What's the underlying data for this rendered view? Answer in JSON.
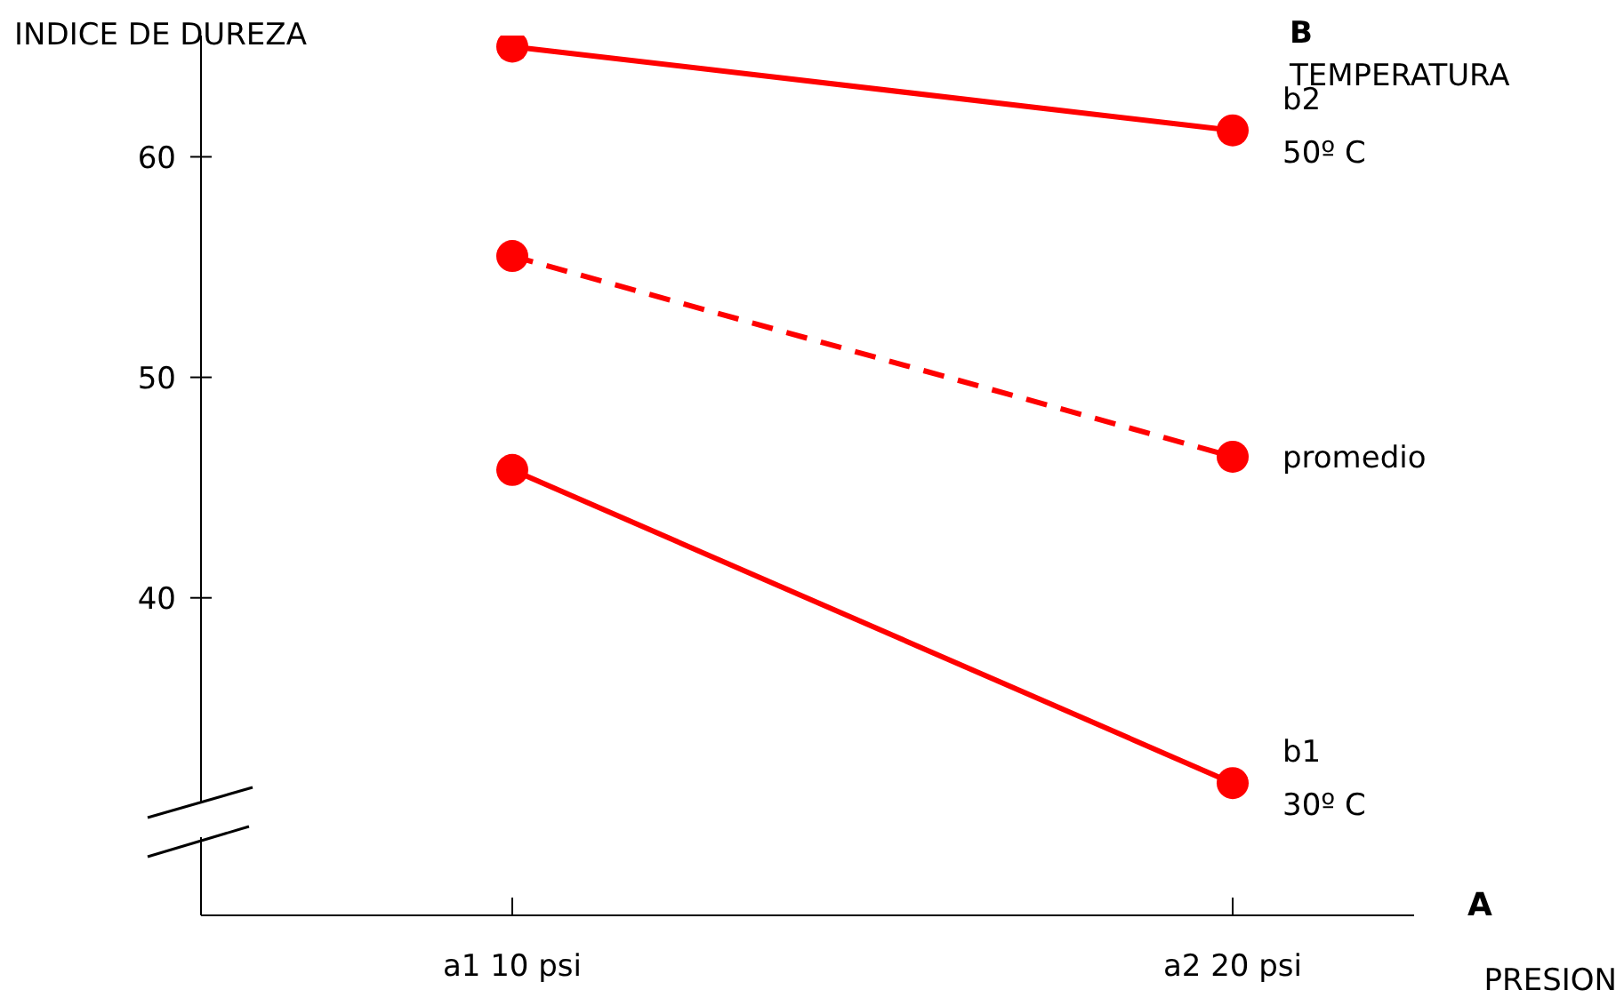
{
  "chart_data": {
    "type": "line",
    "xlabel": "PRESION",
    "ylabel": "INDICE DE DUREZA",
    "legend_title": "TEMPERATURA",
    "annotations": [
      "A",
      "B"
    ],
    "categories": [
      "a1  10 psi",
      "a2  20 psi"
    ],
    "ylim": [
      25.6,
      65.5
    ],
    "yticks": [
      40,
      50,
      60
    ],
    "grid": false,
    "marker": "circle",
    "series": [
      {
        "name": "b2 50º C",
        "color": "#ff0000",
        "values": [
          65.0,
          61.2
        ],
        "line_style": "solid"
      },
      {
        "name": "promedio",
        "color": "#ff0000",
        "values": [
          55.5,
          46.4
        ],
        "line_style": "dashed"
      },
      {
        "name": "b1 30º C",
        "color": "#ff0000",
        "values": [
          45.8,
          31.6
        ],
        "line_style": "solid"
      }
    ]
  }
}
